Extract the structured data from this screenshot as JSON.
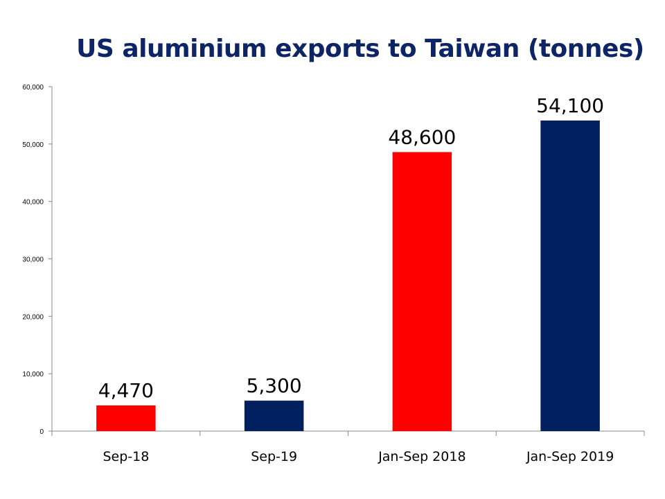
{
  "chart_data": {
    "type": "bar",
    "title": "US aluminium exports to Taiwan (tonnes)",
    "categories": [
      "Sep-18",
      "Sep-19",
      "Jan-Sep 2018",
      "Jan-Sep 2019"
    ],
    "values": [
      4470,
      5300,
      48600,
      54100
    ],
    "data_labels": [
      "4,470",
      "5,300",
      "48,600",
      "54,100"
    ],
    "bar_colors": [
      "#ff0000",
      "#002060",
      "#ff0000",
      "#002060"
    ],
    "ylim": [
      0,
      60000
    ],
    "y_ticks": [
      0,
      10000,
      20000,
      30000,
      40000,
      50000,
      60000
    ],
    "y_tick_labels": [
      "0",
      "10,000",
      "20,000",
      "30,000",
      "40,000",
      "50,000",
      "60,000"
    ],
    "xlabel": "",
    "ylabel": "",
    "grid": false,
    "legend": "none",
    "title_color": "#0d2466"
  }
}
